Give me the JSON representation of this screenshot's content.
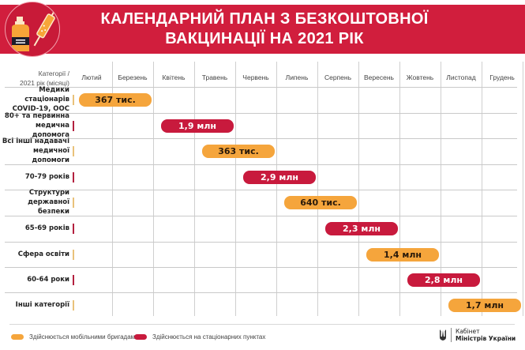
{
  "header": {
    "title_line1": "КАЛЕНДАРНИЙ ПЛАН З БЕЗКОШТОВНОЇ",
    "title_line2": "ВАКЦИНАЦІЇ НА 2021 РІК",
    "icon": "vaccine-vial-syringe-icon"
  },
  "corner": {
    "line1": "Категорії /",
    "line2": "2021 рік (місяці)"
  },
  "chart_data": {
    "type": "gantt",
    "title": "КАЛЕНДАРНИЙ ПЛАН З БЕЗКОШТОВНОЇ ВАКЦИНАЦІЇ НА 2021 РІК",
    "xlabel": "2021 рік (місяці)",
    "ylabel": "Категорії",
    "categories_x": [
      "Лютий",
      "Березень",
      "Квітень",
      "Травень",
      "Червень",
      "Липень",
      "Серпень",
      "Вересень",
      "Жовтень",
      "Листопад",
      "Грудень"
    ],
    "rows": [
      {
        "category": "Медики стаціонарів COVID-19, ООС",
        "label": "367 тис.",
        "value": 367000,
        "start": "Лютий",
        "end": "Березень",
        "type": "mobile"
      },
      {
        "category": "80+ та первинна медична допомога",
        "label": "1,9 млн",
        "value": 1900000,
        "start": "Квітень",
        "end": "Травень",
        "type": "stationary"
      },
      {
        "category": "Всі інші надавачі медичної допомоги",
        "label": "363 тис.",
        "value": 363000,
        "start": "Травень",
        "end": "Червень",
        "type": "mobile"
      },
      {
        "category": "70-79 років",
        "label": "2,9 млн",
        "value": 2900000,
        "start": "Червень",
        "end": "Липень",
        "type": "stationary"
      },
      {
        "category": "Структури державної безпеки",
        "label": "640 тис.",
        "value": 640000,
        "start": "Липень",
        "end": "Серпень",
        "type": "mobile"
      },
      {
        "category": "65-69 років",
        "label": "2,3 млн",
        "value": 2300000,
        "start": "Серпень",
        "end": "Вересень",
        "type": "stationary"
      },
      {
        "category": "Сфера освіти",
        "label": "1,4 млн",
        "value": 1400000,
        "start": "Вересень",
        "end": "Жовтень",
        "type": "mobile"
      },
      {
        "category": "60-64 роки",
        "label": "2,8 млн",
        "value": 2800000,
        "start": "Жовтень",
        "end": "Листопад",
        "type": "stationary"
      },
      {
        "category": "Інші категорії",
        "label": "1,7 млн",
        "value": 1700000,
        "start": "Листопад",
        "end": "Грудень",
        "type": "mobile"
      }
    ],
    "legend": [
      {
        "type": "mobile",
        "label": "Здійснюється мобільними бригадами",
        "color": "#f5a53c"
      },
      {
        "type": "stationary",
        "label": "Здійснюється на стаціонарних пунктах",
        "color": "#c81a3d"
      }
    ],
    "grid": true,
    "legend_position": "bottom"
  },
  "rows_display": [
    {
      "line1": "Медики стаціонарів",
      "line2": "COVID-19, ООС"
    },
    {
      "line1": "80+ та первинна",
      "line2": "медична допомога"
    },
    {
      "line1": "Всі інші надавачі",
      "line2": "медичної допомоги"
    },
    {
      "line1": "70-79 років",
      "line2": ""
    },
    {
      "line1": "Структури",
      "line2": "державної безпеки"
    },
    {
      "line1": "65-69 років",
      "line2": ""
    },
    {
      "line1": "Сфера освіти",
      "line2": ""
    },
    {
      "line1": "60-64 роки",
      "line2": ""
    },
    {
      "line1": "Інші категорії",
      "line2": ""
    }
  ],
  "colors": {
    "banner": "#d11e3d",
    "mobile": "#f5a53c",
    "stationary": "#c81a3d"
  },
  "footer": {
    "logo_line1": "Кабінет",
    "logo_line2": "Міністрів України",
    "logo_icon": "trident-icon"
  }
}
